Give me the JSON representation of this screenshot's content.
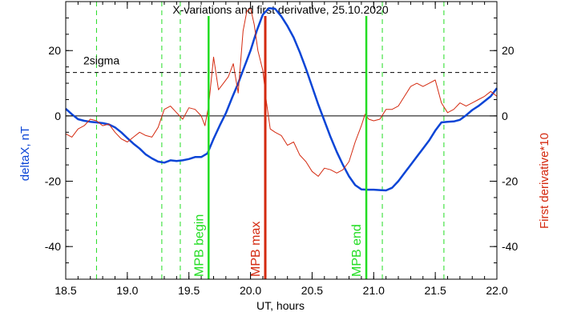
{
  "chart_data": {
    "type": "line",
    "title": "X-variations and first derivative, 25.10.2020",
    "xlabel": "UT, hours",
    "ylabel_left": "deltaX, nT",
    "ylabel_right": "First derivative*10",
    "xlim": [
      18.5,
      22.0
    ],
    "ylim": [
      -50,
      35
    ],
    "xticks": [
      18.5,
      19.0,
      19.5,
      20.0,
      20.5,
      21.0,
      21.5,
      22.0
    ],
    "xtick_labels": [
      "18.5",
      "19.0",
      "19.5",
      "20.0",
      "20.5",
      "21.0",
      "21.5",
      "22.0"
    ],
    "yticks": [
      -40,
      -20,
      0,
      20
    ],
    "ytick_labels": [
      "-40",
      "-20",
      "0",
      "20"
    ],
    "colors": {
      "deltaX": "#0b45d6",
      "derivative": "#d42a10",
      "markers": "#22dd22",
      "mpb_max": "#d42a10"
    },
    "sigma": {
      "label": "2sigma",
      "value": 13.3
    },
    "zero_line": 0,
    "series": [
      {
        "key": "deltaX",
        "x": [
          18.5,
          18.55,
          18.6,
          18.65,
          18.7,
          18.75,
          18.8,
          18.85,
          18.9,
          18.95,
          19.0,
          19.05,
          19.1,
          19.15,
          19.2,
          19.25,
          19.3,
          19.35,
          19.4,
          19.45,
          19.5,
          19.55,
          19.6,
          19.65,
          19.7,
          19.75,
          19.8,
          19.85,
          19.9,
          19.95,
          20.0,
          20.05,
          20.1,
          20.15,
          20.2,
          20.25,
          20.3,
          20.35,
          20.4,
          20.45,
          20.5,
          20.55,
          20.6,
          20.65,
          20.7,
          20.75,
          20.8,
          20.85,
          20.9,
          20.95,
          21.0,
          21.05,
          21.1,
          21.15,
          21.2,
          21.25,
          21.3,
          21.35,
          21.4,
          21.45,
          21.5,
          21.55,
          21.6,
          21.65,
          21.7,
          21.75,
          21.8,
          21.85,
          21.9,
          21.95,
          22.0
        ],
        "y": [
          2.2,
          0.5,
          -1.0,
          -1.5,
          -1.8,
          -2.0,
          -2.2,
          -2.6,
          -3.5,
          -5.0,
          -6.8,
          -8.5,
          -10.0,
          -11.8,
          -13.0,
          -14.0,
          -14.3,
          -13.6,
          -13.8,
          -13.6,
          -13.2,
          -12.6,
          -12.6,
          -11.5,
          -7.0,
          -3.0,
          0.8,
          5.5,
          10.0,
          15.0,
          20.0,
          26.0,
          31.0,
          33.0,
          32.8,
          30.5,
          27.5,
          24.0,
          19.5,
          14.5,
          9.0,
          3.5,
          -1.5,
          -6.5,
          -11.0,
          -15.0,
          -18.5,
          -21.2,
          -22.5,
          -22.6,
          -22.6,
          -22.7,
          -22.8,
          -22.0,
          -20.0,
          -17.5,
          -15.0,
          -12.5,
          -10.0,
          -7.5,
          -4.5,
          -2.0,
          -1.8,
          -1.7,
          -1.2,
          0.2,
          1.8,
          3.0,
          4.5,
          6.0,
          8.5
        ]
      },
      {
        "key": "derivative",
        "x": [
          18.5,
          18.55,
          18.6,
          18.65,
          18.7,
          18.75,
          18.8,
          18.85,
          18.9,
          18.95,
          19.0,
          19.05,
          19.1,
          19.15,
          19.2,
          19.25,
          19.3,
          19.35,
          19.4,
          19.45,
          19.5,
          19.55,
          19.6,
          19.63,
          19.66,
          19.7,
          19.74,
          19.78,
          19.82,
          19.86,
          19.9,
          19.94,
          19.97,
          20.0,
          20.03,
          20.06,
          20.1,
          20.13,
          20.16,
          20.2,
          20.25,
          20.3,
          20.35,
          20.4,
          20.45,
          20.5,
          20.55,
          20.6,
          20.65,
          20.7,
          20.75,
          20.8,
          20.85,
          20.9,
          20.93,
          20.96,
          21.0,
          21.05,
          21.1,
          21.15,
          21.2,
          21.25,
          21.3,
          21.35,
          21.4,
          21.45,
          21.5,
          21.55,
          21.6,
          21.65,
          21.7,
          21.75,
          21.8,
          21.85,
          21.9,
          21.95,
          22.0
        ],
        "y": [
          -5.5,
          -6.5,
          -4.0,
          -3.0,
          -1.0,
          -1.5,
          -3.0,
          -2.5,
          -5.0,
          -7.0,
          -8.0,
          -6.5,
          -5.0,
          -6.0,
          -6.5,
          -3.5,
          2.0,
          3.0,
          1.0,
          -1.0,
          2.5,
          2.0,
          0.0,
          -3.0,
          3.0,
          18.0,
          8.0,
          10.0,
          12.0,
          16.0,
          7.0,
          26.0,
          32.0,
          33.0,
          28.0,
          20.0,
          14.0,
          4.0,
          -4.0,
          -5.0,
          -6.0,
          -9.0,
          -8.0,
          -12.0,
          -14.0,
          -17.0,
          -18.5,
          -16.0,
          -16.5,
          -17.5,
          -16.5,
          -14.0,
          -8.0,
          -3.0,
          0.5,
          -1.0,
          -1.5,
          -1.0,
          2.0,
          2.0,
          3.0,
          6.0,
          9.0,
          10.0,
          9.0,
          10.0,
          11.0,
          4.0,
          1.0,
          2.0,
          4.0,
          3.0,
          4.0,
          5.0,
          6.0,
          7.5,
          6.0
        ]
      }
    ],
    "dashed_markers": [
      18.75,
      19.28,
      19.43,
      21.07,
      21.57
    ],
    "event_markers": [
      {
        "label": "MPB begin",
        "x": 19.66,
        "role": "begin"
      },
      {
        "label": "MPB max",
        "x": 20.12,
        "role": "max"
      },
      {
        "label": "MPB end",
        "x": 20.94,
        "role": "end"
      }
    ]
  }
}
